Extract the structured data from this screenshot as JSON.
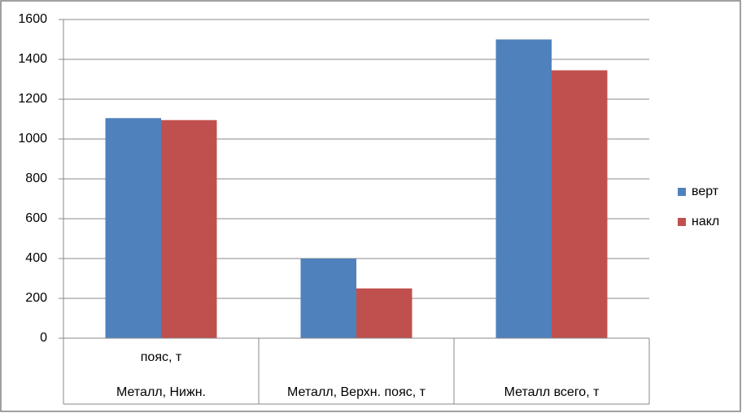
{
  "chart_data": {
    "type": "bar",
    "categories": [
      [
        "пояс, т",
        "Металл, Нижн."
      ],
      [
        "Металл, Верхн. пояс, т"
      ],
      [
        "Металл всего, т"
      ]
    ],
    "series": [
      {
        "name": "верт",
        "color": "#4f81bd",
        "values": [
          1105,
          400,
          1500
        ]
      },
      {
        "name": "накл",
        "color": "#c0504d",
        "values": [
          1095,
          250,
          1345
        ]
      }
    ],
    "ylim": [
      0,
      1600
    ],
    "yticks": [
      0,
      200,
      400,
      600,
      800,
      1000,
      1200,
      1400,
      1600
    ],
    "grid": true,
    "legend": "right"
  }
}
